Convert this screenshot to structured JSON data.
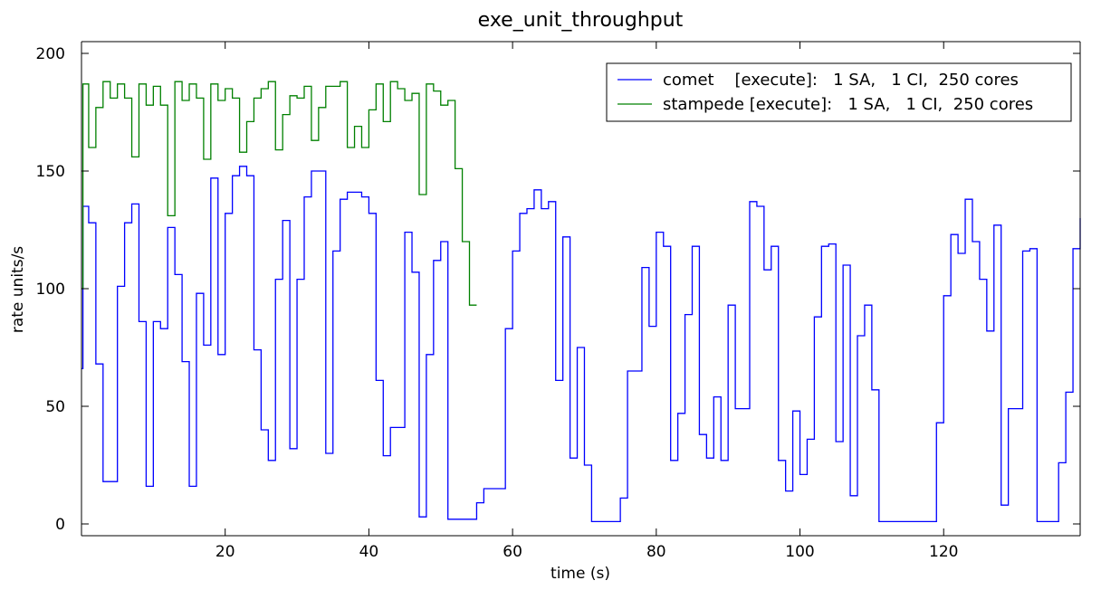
{
  "chart_data": {
    "type": "line",
    "title": "exe_unit_throughput",
    "xlabel": "time (s)",
    "ylabel": "rate units/s",
    "xlim": [
      0,
      139
    ],
    "ylim": [
      0,
      200
    ],
    "xticks": [
      20,
      40,
      60,
      80,
      100,
      120
    ],
    "yticks": [
      0,
      50,
      100,
      150,
      200
    ],
    "grid": false,
    "legend_position": "top-right",
    "step": true,
    "series": [
      {
        "name": "comet    [execute]:   1 SA,   1 CI,  250 cores",
        "color": "#0000ff",
        "x": [
          0,
          0.2,
          1,
          2,
          3,
          4,
          5,
          6,
          7,
          8,
          9,
          10,
          11,
          12,
          13,
          14,
          15,
          16,
          17,
          18,
          19,
          20,
          21,
          22,
          23,
          24,
          25,
          26,
          27,
          28,
          29,
          30,
          31,
          32,
          33,
          34,
          35,
          36,
          37,
          38,
          39,
          40,
          41,
          42,
          43,
          44,
          45,
          46,
          47,
          48,
          49,
          50,
          51,
          52,
          53,
          54,
          55,
          56,
          57,
          58,
          59,
          60,
          61,
          62,
          63,
          64,
          65,
          66,
          67,
          68,
          69,
          70,
          71,
          72,
          73,
          74,
          75,
          76,
          77,
          78,
          79,
          80,
          81,
          82,
          83,
          84,
          85,
          86,
          87,
          88,
          89,
          90,
          91,
          92,
          93,
          94,
          95,
          96,
          97,
          98,
          99,
          100,
          101,
          102,
          103,
          104,
          105,
          106,
          107,
          108,
          109,
          110,
          111,
          112,
          113,
          114,
          115,
          116,
          117,
          118,
          119,
          120,
          121,
          122,
          123,
          124,
          125,
          126,
          127,
          128,
          129,
          130,
          131,
          132,
          133,
          134,
          135,
          136,
          137,
          138,
          139
        ],
        "values": [
          66,
          135,
          128,
          68,
          18,
          18,
          101,
          128,
          136,
          86,
          16,
          86,
          83,
          126,
          106,
          69,
          16,
          98,
          76,
          147,
          72,
          132,
          148,
          152,
          148,
          74,
          40,
          27,
          104,
          129,
          32,
          104,
          139,
          150,
          150,
          30,
          116,
          138,
          141,
          141,
          139,
          132,
          61,
          29,
          41,
          41,
          124,
          107,
          3,
          72,
          112,
          120,
          2,
          2,
          2,
          2,
          9,
          15,
          15,
          15,
          83,
          116,
          132,
          134,
          142,
          134,
          137,
          61,
          122,
          28,
          75,
          25,
          1,
          1,
          1,
          1,
          11,
          65,
          65,
          109,
          84,
          124,
          118,
          27,
          47,
          89,
          118,
          38,
          28,
          54,
          27,
          93,
          49,
          49,
          137,
          135,
          108,
          118,
          27,
          14,
          48,
          21,
          36,
          88,
          118,
          119,
          35,
          110,
          12,
          80,
          93,
          57,
          1,
          1,
          1,
          1,
          1,
          1,
          1,
          1,
          43,
          97,
          123,
          115,
          138,
          120,
          104,
          82,
          127,
          8,
          49,
          49,
          116,
          117,
          1,
          1,
          1,
          26,
          56,
          117,
          130
        ]
      },
      {
        "name": "stampede [execute]:   1 SA,   1 CI,  250 cores",
        "color": "#008000",
        "x": [
          0,
          0.2,
          1,
          2,
          3,
          4,
          5,
          6,
          7,
          8,
          9,
          10,
          11,
          12,
          13,
          14,
          15,
          16,
          17,
          18,
          19,
          20,
          21,
          22,
          23,
          24,
          25,
          26,
          27,
          28,
          29,
          30,
          31,
          32,
          33,
          34,
          35,
          36,
          37,
          38,
          39,
          40,
          41,
          42,
          43,
          44,
          45,
          46,
          47,
          48,
          49,
          50,
          51,
          52,
          53,
          54,
          55
        ],
        "values": [
          100,
          187,
          160,
          177,
          188,
          181,
          187,
          181,
          156,
          187,
          178,
          186,
          178,
          131,
          188,
          180,
          187,
          181,
          155,
          187,
          180,
          185,
          181,
          158,
          171,
          181,
          185,
          188,
          159,
          174,
          182,
          181,
          186,
          163,
          177,
          186,
          186,
          188,
          160,
          169,
          160,
          176,
          187,
          171,
          188,
          185,
          180,
          183,
          140,
          187,
          184,
          178,
          180,
          151,
          120,
          93,
          93
        ]
      }
    ]
  }
}
